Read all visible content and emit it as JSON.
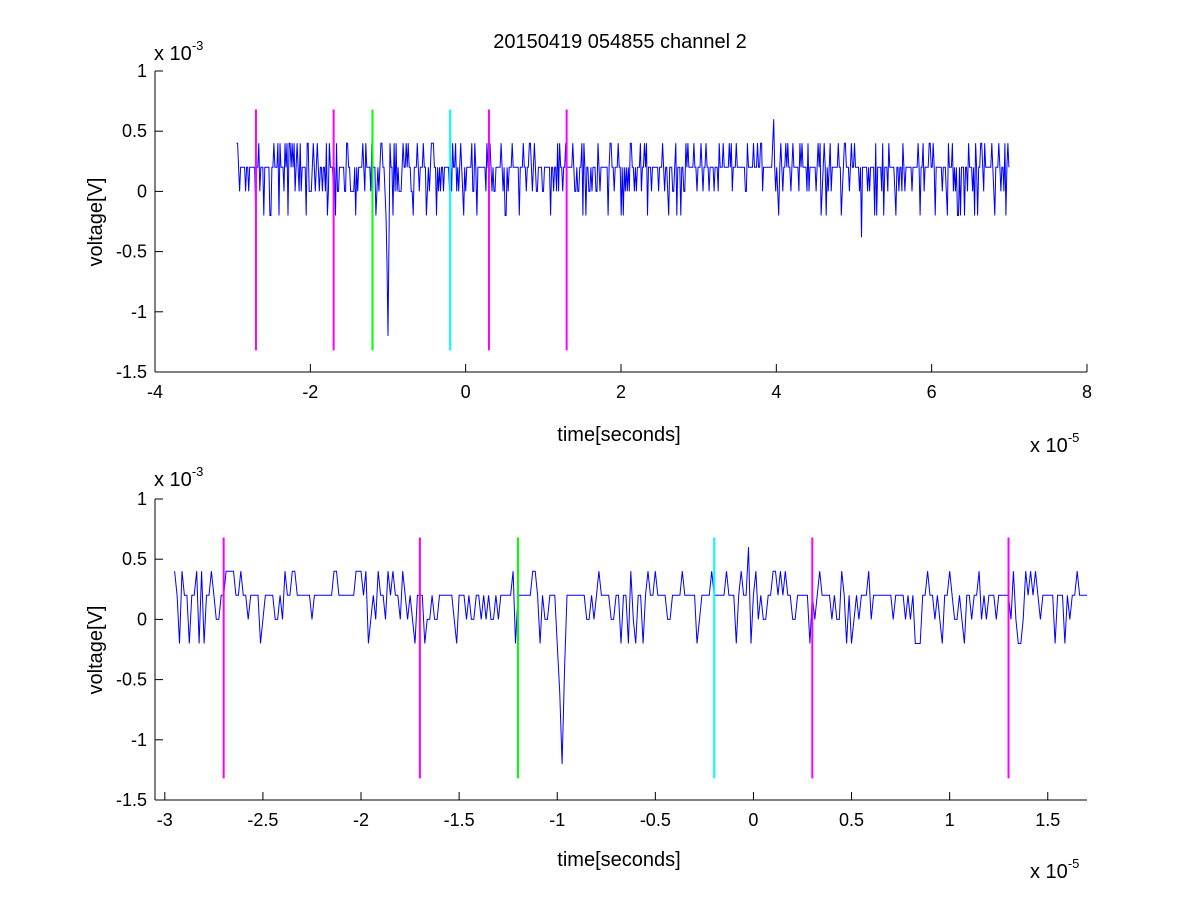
{
  "title": "20150419 054855 channel 2",
  "colors": {
    "signal": "#0000ff",
    "magenta": "#ff00ff",
    "green": "#00ff00",
    "cyan": "#00ffff",
    "axis": "#000000"
  },
  "chart_data": [
    {
      "type": "line",
      "xlabel": "time[seconds]",
      "ylabel": "voltage[V]",
      "x_exponent_base": "x 10",
      "x_exponent_power": "-5",
      "y_exponent_base": "x 10",
      "y_exponent_power": "-3",
      "xlim": [
        -4,
        8
      ],
      "ylim": [
        -1.5,
        1
      ],
      "xticks": [
        "-4",
        "-2",
        "0",
        "2",
        "4",
        "6",
        "8"
      ],
      "yticks": [
        "1",
        "0.5",
        "0",
        "-0.5",
        "-1",
        "-1.5"
      ],
      "signal_range": [
        -2.95,
        7.0
      ],
      "spikes": [
        {
          "x": -1.0,
          "y": -1.2
        },
        {
          "x": 3.97,
          "y": 0.6
        },
        {
          "x": 5.1,
          "y": -0.38
        },
        {
          "x": -2.95,
          "y": 0.4
        }
      ],
      "markers": [
        {
          "x": -2.7,
          "color": "magenta",
          "y_top": 0.68,
          "y_bottom": -1.32
        },
        {
          "x": -1.7,
          "color": "magenta",
          "y_top": 0.68,
          "y_bottom": -1.32
        },
        {
          "x": -1.2,
          "color": "green",
          "y_top": 0.68,
          "y_bottom": -1.32
        },
        {
          "x": -0.2,
          "color": "cyan",
          "y_top": 0.68,
          "y_bottom": -1.32
        },
        {
          "x": 0.3,
          "color": "magenta",
          "y_top": 0.68,
          "y_bottom": -1.32
        },
        {
          "x": 1.3,
          "color": "magenta",
          "y_top": 0.68,
          "y_bottom": -1.32
        }
      ]
    },
    {
      "type": "line",
      "xlabel": "time[seconds]",
      "ylabel": "voltage[V]",
      "x_exponent_base": "x 10",
      "x_exponent_power": "-5",
      "y_exponent_base": "x 10",
      "y_exponent_power": "-3",
      "xlim": [
        -3.05,
        1.7
      ],
      "ylim": [
        -1.5,
        1
      ],
      "xticks": [
        "-3",
        "-2.5",
        "-2",
        "-1.5",
        "-1",
        "-0.5",
        "0",
        "0.5",
        "1",
        "1.5"
      ],
      "yticks": [
        "1",
        "0.5",
        "0",
        "-0.5",
        "-1",
        "-1.5"
      ],
      "signal_range": [
        -2.95,
        1.7
      ],
      "spikes": [
        {
          "x": -0.97,
          "y": -1.2
        },
        {
          "x": -0.02,
          "y": 0.6
        },
        {
          "x": -2.95,
          "y": 0.4
        }
      ],
      "markers": [
        {
          "x": -2.7,
          "color": "magenta",
          "y_top": 0.68,
          "y_bottom": -1.32
        },
        {
          "x": -1.7,
          "color": "magenta",
          "y_top": 0.68,
          "y_bottom": -1.32
        },
        {
          "x": -1.2,
          "color": "green",
          "y_top": 0.68,
          "y_bottom": -1.32
        },
        {
          "x": -0.2,
          "color": "cyan",
          "y_top": 0.68,
          "y_bottom": -1.32
        },
        {
          "x": 0.3,
          "color": "magenta",
          "y_top": 0.68,
          "y_bottom": -1.32
        },
        {
          "x": 1.3,
          "color": "magenta",
          "y_top": 0.68,
          "y_bottom": -1.32
        }
      ]
    }
  ]
}
